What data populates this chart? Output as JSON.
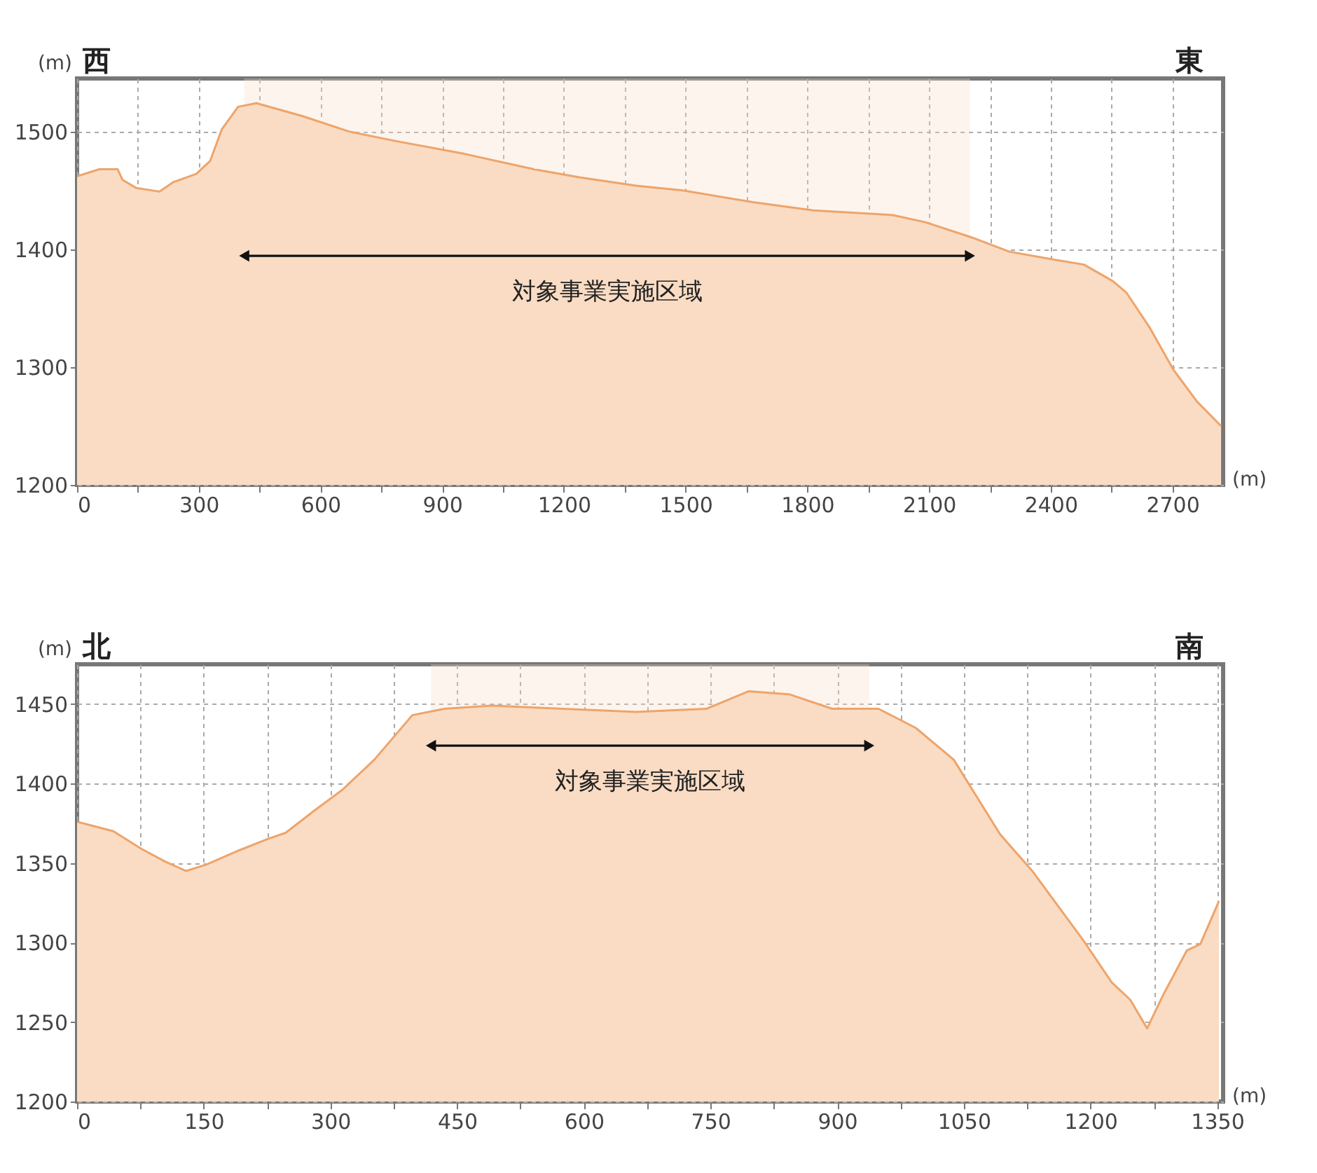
{
  "chart_data": [
    {
      "type": "area",
      "xlabel": "(m)",
      "ylabel": "(m)",
      "grid": true,
      "annotations": [
        "西",
        "東"
      ],
      "bands": [
        {
          "axis": "x",
          "from": 412,
          "to": 2201,
          "label": "対象事業実施区域",
          "color": "#fadcc4"
        }
      ],
      "xlim": [
        0,
        2825
      ],
      "ylim": [
        1200,
        1545
      ],
      "xticks": [
        0,
        {
          "value": 150,
          "label": null
        },
        300,
        {
          "value": 450,
          "label": null
        },
        600,
        {
          "value": 750,
          "label": null
        },
        900,
        {
          "value": 1050,
          "label": null
        },
        1200,
        {
          "value": 1350,
          "label": null
        },
        1500,
        {
          "value": 1650,
          "label": null
        },
        1800,
        {
          "value": 1950,
          "label": null
        },
        2100,
        {
          "value": 2250,
          "label": null
        },
        2400,
        {
          "value": 2550,
          "label": null
        },
        2700
      ],
      "yticks": [
        1200,
        1300,
        1400,
        1500
      ],
      "series": [
        {
          "color": "#fadcc4",
          "x": [
            0,
            55,
            100,
            112,
            146,
            203,
            237,
            294,
            328,
            357,
            397,
            442,
            556,
            670,
            784,
            955,
            1126,
            1240,
            1378,
            1493,
            1666,
            1815,
            2011,
            2091,
            2206,
            2298,
            2413,
            2482,
            2553,
            2587,
            2645,
            2702,
            2760,
            2820
          ],
          "values": [
            1462,
            1468,
            1468,
            1459,
            1452,
            1449,
            1457,
            1464,
            1475,
            1502,
            1521,
            1524,
            1513,
            1500,
            1492,
            1481,
            1468,
            1461,
            1454,
            1450,
            1440,
            1433,
            1429,
            1423,
            1410,
            1398,
            1391,
            1387,
            1373,
            1363,
            1333,
            1298,
            1271,
            1250
          ]
        }
      ]
    },
    {
      "type": "area",
      "xlabel": "(m)",
      "ylabel": "(m)",
      "grid": true,
      "annotations": [
        "北",
        "南"
      ],
      "bands": [
        {
          "axis": "x",
          "from": 419,
          "to": 938,
          "label": "対象事業実施区域",
          "color": "#fadcc4"
        }
      ],
      "xlim": [
        0,
        1357
      ],
      "ylim": [
        1200,
        1475
      ],
      "xticks": [
        0,
        {
          "value": 75,
          "label": null
        },
        150,
        {
          "value": 225,
          "label": null
        },
        300,
        {
          "value": 375,
          "label": null
        },
        450,
        {
          "value": 525,
          "label": null
        },
        600,
        {
          "value": 675,
          "label": null
        },
        750,
        {
          "value": 825,
          "label": null
        },
        900,
        {
          "value": 975,
          "label": null
        },
        1050,
        {
          "value": 1125,
          "label": null
        },
        1200,
        {
          "value": 1275,
          "label": null
        },
        1350
      ],
      "yticks": [
        1200,
        1250,
        1300,
        1350,
        1400,
        1450
      ],
      "series": [
        {
          "color": "#fadcc4",
          "x": [
            0,
            43,
            76,
            104,
            129,
            153,
            192,
            225,
            247,
            281,
            314,
            352,
            397,
            435,
            491,
            662,
            745,
            795,
            844,
            894,
            949,
            993,
            1038,
            1093,
            1131,
            1192,
            1225,
            1247,
            1267,
            1286,
            1314,
            1330,
            1352
          ],
          "values": [
            1376,
            1370,
            1359,
            1351,
            1345,
            1349,
            1358,
            1365,
            1369,
            1383,
            1396,
            1415,
            1443,
            1447,
            1449,
            1445,
            1447,
            1458,
            1456,
            1447,
            1447,
            1435,
            1415,
            1368,
            1345,
            1301,
            1275,
            1264,
            1246,
            1267,
            1295,
            1299,
            1326
          ]
        }
      ]
    }
  ]
}
